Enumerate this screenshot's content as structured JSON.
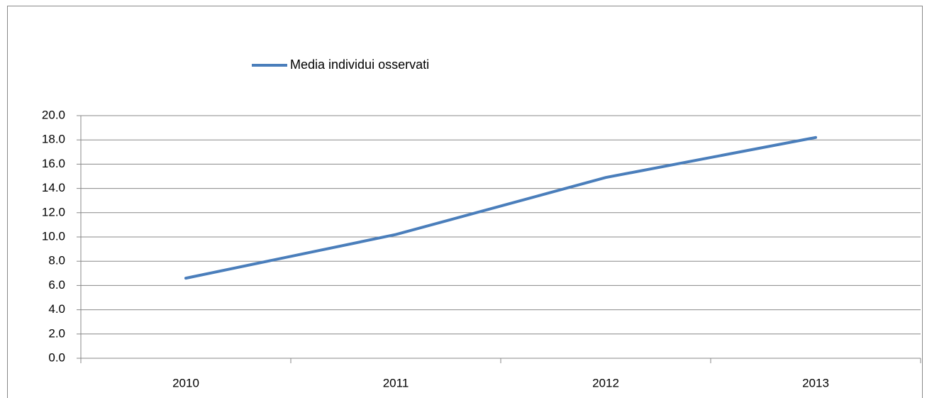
{
  "chart_data": {
    "type": "line",
    "categories": [
      "2010",
      "2011",
      "2012",
      "2013"
    ],
    "series": [
      {
        "name": "Media individui osservati",
        "color": "#4a7ebb",
        "values": [
          6.6,
          10.2,
          14.9,
          18.2
        ]
      }
    ],
    "ylim": [
      0,
      20
    ],
    "yticks": [
      {
        "value": 0,
        "label": "0.0"
      },
      {
        "value": 2,
        "label": "2.0"
      },
      {
        "value": 4,
        "label": "4.0"
      },
      {
        "value": 6,
        "label": "6.0"
      },
      {
        "value": 8,
        "label": "8.0"
      },
      {
        "value": 10,
        "label": "10.0"
      },
      {
        "value": 12,
        "label": "12.0"
      },
      {
        "value": 14,
        "label": "14.0"
      },
      {
        "value": 16,
        "label": "16.0"
      },
      {
        "value": 18,
        "label": "18.0"
      },
      {
        "value": 20,
        "label": "20.0"
      }
    ],
    "grid": true,
    "legend": "top"
  }
}
